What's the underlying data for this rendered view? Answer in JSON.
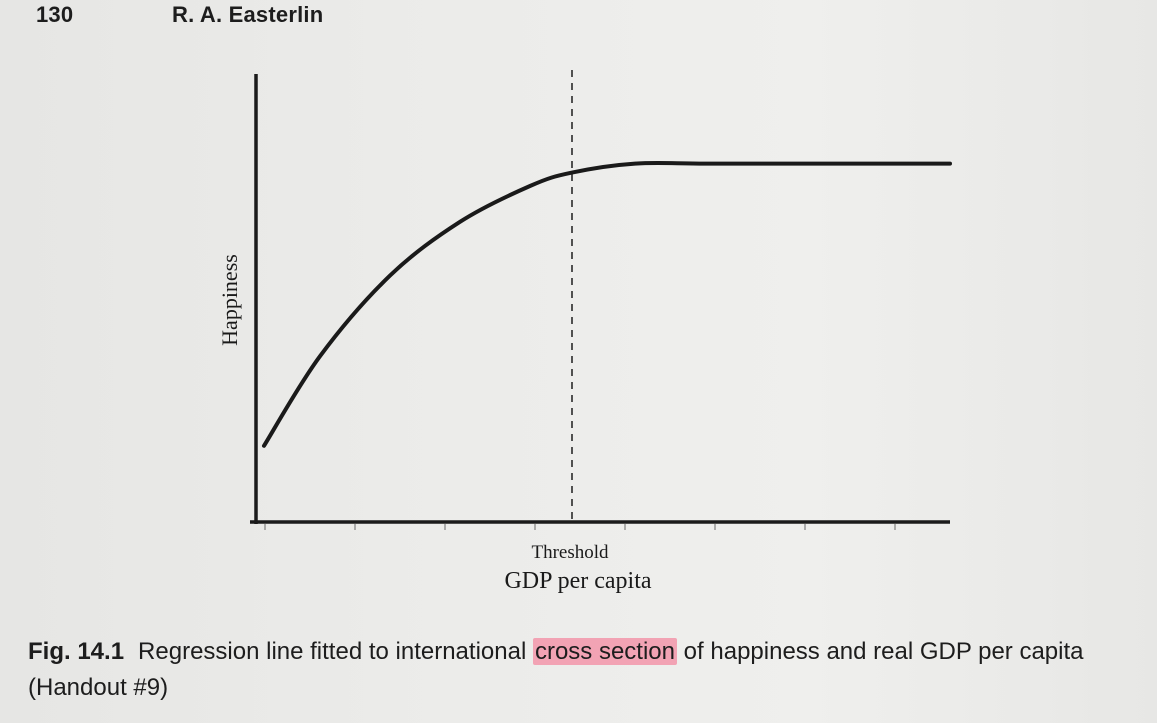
{
  "running_head": {
    "page_number": "130",
    "author": "R. A. Easterlin"
  },
  "chart_data": {
    "type": "line",
    "title": "",
    "xlabel": "GDP per capita",
    "ylabel": "Happiness",
    "x_tick_labels": [
      "Threshold"
    ],
    "threshold_x": 0.46,
    "xlim": [
      0,
      1
    ],
    "ylim": [
      0,
      1
    ],
    "grid": false,
    "series": [
      {
        "x": [
          0.02,
          0.1,
          0.2,
          0.3,
          0.4,
          0.46,
          0.55,
          0.65,
          0.8,
          1.0
        ],
        "y": [
          0.17,
          0.37,
          0.55,
          0.67,
          0.75,
          0.78,
          0.8,
          0.8,
          0.8,
          0.8
        ]
      }
    ],
    "annotations": [
      {
        "type": "vertical-dashed-line",
        "x": 0.46,
        "label": "Threshold"
      }
    ]
  },
  "caption": {
    "figure_number": "Fig. 14.1",
    "text_before": "Regression line fitted to international ",
    "highlighted": "cross section",
    "text_after": " of happiness and real GDP per capita (Handout #9)"
  }
}
